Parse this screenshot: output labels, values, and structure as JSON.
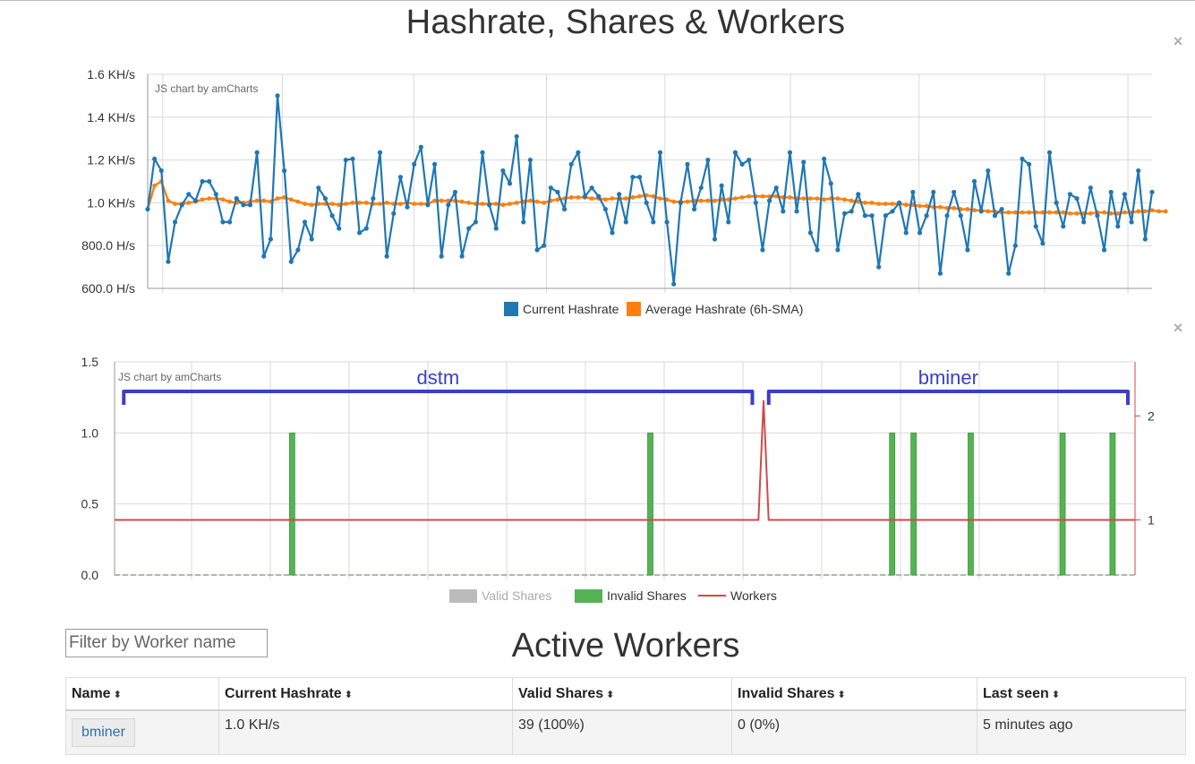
{
  "page": {
    "title": "Hashrate, Shares & Workers",
    "close_symbol": "×"
  },
  "workers_section": {
    "title": "Active Workers",
    "filter_placeholder": "Filter by Worker name",
    "sort_glyph": "⬍",
    "columns": [
      "Name",
      "Current Hashrate",
      "Valid Shares",
      "Invalid Shares",
      "Last seen"
    ],
    "rows": [
      {
        "name": "bminer",
        "hashrate": "1.0 KH/s",
        "valid": "39 (100%)",
        "invalid": "0 (0%)",
        "last_seen": "5 minutes ago"
      }
    ]
  },
  "chart_data": [
    {
      "type": "line",
      "credit": "JS chart by amCharts",
      "y_ticks": [
        "1.6 KH/s",
        "1.4 KH/s",
        "1.2 KH/s",
        "1.0 KH/s",
        "800.0 H/s",
        "600.0 H/s"
      ],
      "ylim": [
        600,
        1600
      ],
      "y_unit": "H/s",
      "grid": true,
      "legend_position": "bottom",
      "series": [
        {
          "name": "Current Hashrate",
          "color": "#1f77b4",
          "values": [
            970,
            1205,
            1150,
            725,
            910,
            990,
            1040,
            1010,
            1100,
            1100,
            1040,
            910,
            910,
            1020,
            990,
            990,
            1235,
            750,
            830,
            1500,
            1150,
            725,
            780,
            910,
            830,
            1070,
            1020,
            940,
            880,
            1200,
            1205,
            860,
            880,
            1020,
            1235,
            750,
            950,
            1120,
            980,
            1180,
            1260,
            990,
            1180,
            750,
            990,
            1050,
            750,
            880,
            910,
            1235,
            990,
            880,
            1150,
            1090,
            1310,
            910,
            1200,
            780,
            800,
            1070,
            1050,
            970,
            1180,
            1235,
            1030,
            1070,
            1030,
            970,
            860,
            1040,
            910,
            1120,
            1120,
            1000,
            910,
            1235,
            910,
            620,
            1000,
            1180,
            970,
            1070,
            1200,
            830,
            1080,
            910,
            1235,
            1180,
            1200,
            1000,
            780,
            1010,
            1070,
            960,
            1235,
            960,
            1190,
            860,
            780,
            1205,
            1090,
            780,
            950,
            960,
            1040,
            940,
            940,
            700,
            940,
            960,
            1000,
            860,
            1050,
            860,
            940,
            1050,
            670,
            940,
            1050,
            940,
            780,
            1100,
            960,
            1150,
            940,
            970,
            670,
            800,
            1205,
            1180,
            890,
            810,
            1235,
            1000,
            890,
            1040,
            1020,
            910,
            1070,
            940,
            780,
            1050,
            890,
            1040,
            910,
            1150,
            830,
            1050
          ]
        },
        {
          "name": "Average Hashrate (6h-SMA)",
          "color": "#ff7f0e",
          "values": [
            970,
            1080,
            1100,
            1010,
            995,
            995,
            1000,
            1005,
            1015,
            1020,
            1020,
            1015,
            1005,
            1000,
            1000,
            1005,
            1010,
            1010,
            1005,
            1020,
            1025,
            1015,
            1005,
            995,
            990,
            995,
            995,
            995,
            990,
            995,
            1000,
            1000,
            1000,
            995,
            995,
            1000,
            995,
            995,
            1000,
            995,
            995,
            995,
            1010,
            1010,
            1010,
            1010,
            1005,
            1000,
            995,
            995,
            995,
            995,
            990,
            995,
            1000,
            1005,
            1010,
            1005,
            1000,
            1010,
            1015,
            1020,
            1025,
            1025,
            1025,
            1020,
            1020,
            1015,
            1020,
            1020,
            1020,
            1025,
            1030,
            1035,
            1030,
            1020,
            1015,
            1005,
            1005,
            1005,
            1010,
            1010,
            1010,
            1010,
            1015,
            1015,
            1020,
            1025,
            1030,
            1030,
            1030,
            1030,
            1030,
            1025,
            1025,
            1020,
            1020,
            1020,
            1020,
            1015,
            1020,
            1020,
            1015,
            1010,
            1005,
            1000,
            1000,
            995,
            995,
            995,
            995,
            990,
            990,
            985,
            985,
            980,
            980,
            975,
            975,
            970,
            970,
            965,
            965,
            960,
            960,
            955,
            955,
            955,
            955,
            955,
            955,
            955,
            955,
            955,
            955,
            950,
            950,
            950,
            950,
            955,
            955,
            950,
            950,
            955,
            955,
            960,
            960,
            965,
            960,
            960
          ]
        }
      ]
    },
    {
      "type": "bar",
      "credit": "JS chart by amCharts",
      "y_ticks": [
        "1.5",
        "1.0",
        "0.5",
        "0.0"
      ],
      "ylim": [
        0,
        1.5
      ],
      "y2_ticks": [
        "2",
        "1"
      ],
      "y2lim": [
        0.47,
        2.52
      ],
      "grid": true,
      "legend_position": "bottom",
      "annotations": [
        {
          "text": "dstm",
          "color": "#3a3fc8",
          "x_start": 0.009,
          "x_end": 0.632
        },
        {
          "text": "bminer",
          "color": "#3a3fc8",
          "x_start": 0.641,
          "x_end": 1.0
        }
      ],
      "x_fraction_domain": [
        0,
        1
      ],
      "series": [
        {
          "name": "Valid Shares",
          "color": "#bbbbbb",
          "type": "bar",
          "values": []
        },
        {
          "name": "Invalid Shares",
          "color": "#55b255",
          "type": "bar",
          "x": [
            0.174,
            0.525,
            0.762,
            0.783,
            0.839,
            0.929,
            0.978
          ],
          "values": [
            1,
            1,
            1,
            1,
            1,
            1,
            1
          ]
        },
        {
          "name": "Workers",
          "color": "#d04a4a",
          "type": "line",
          "x": [
            0,
            0.631,
            0.636,
            0.641,
            1.0
          ],
          "values": [
            1,
            1,
            2.15,
            1,
            1
          ]
        }
      ]
    }
  ]
}
